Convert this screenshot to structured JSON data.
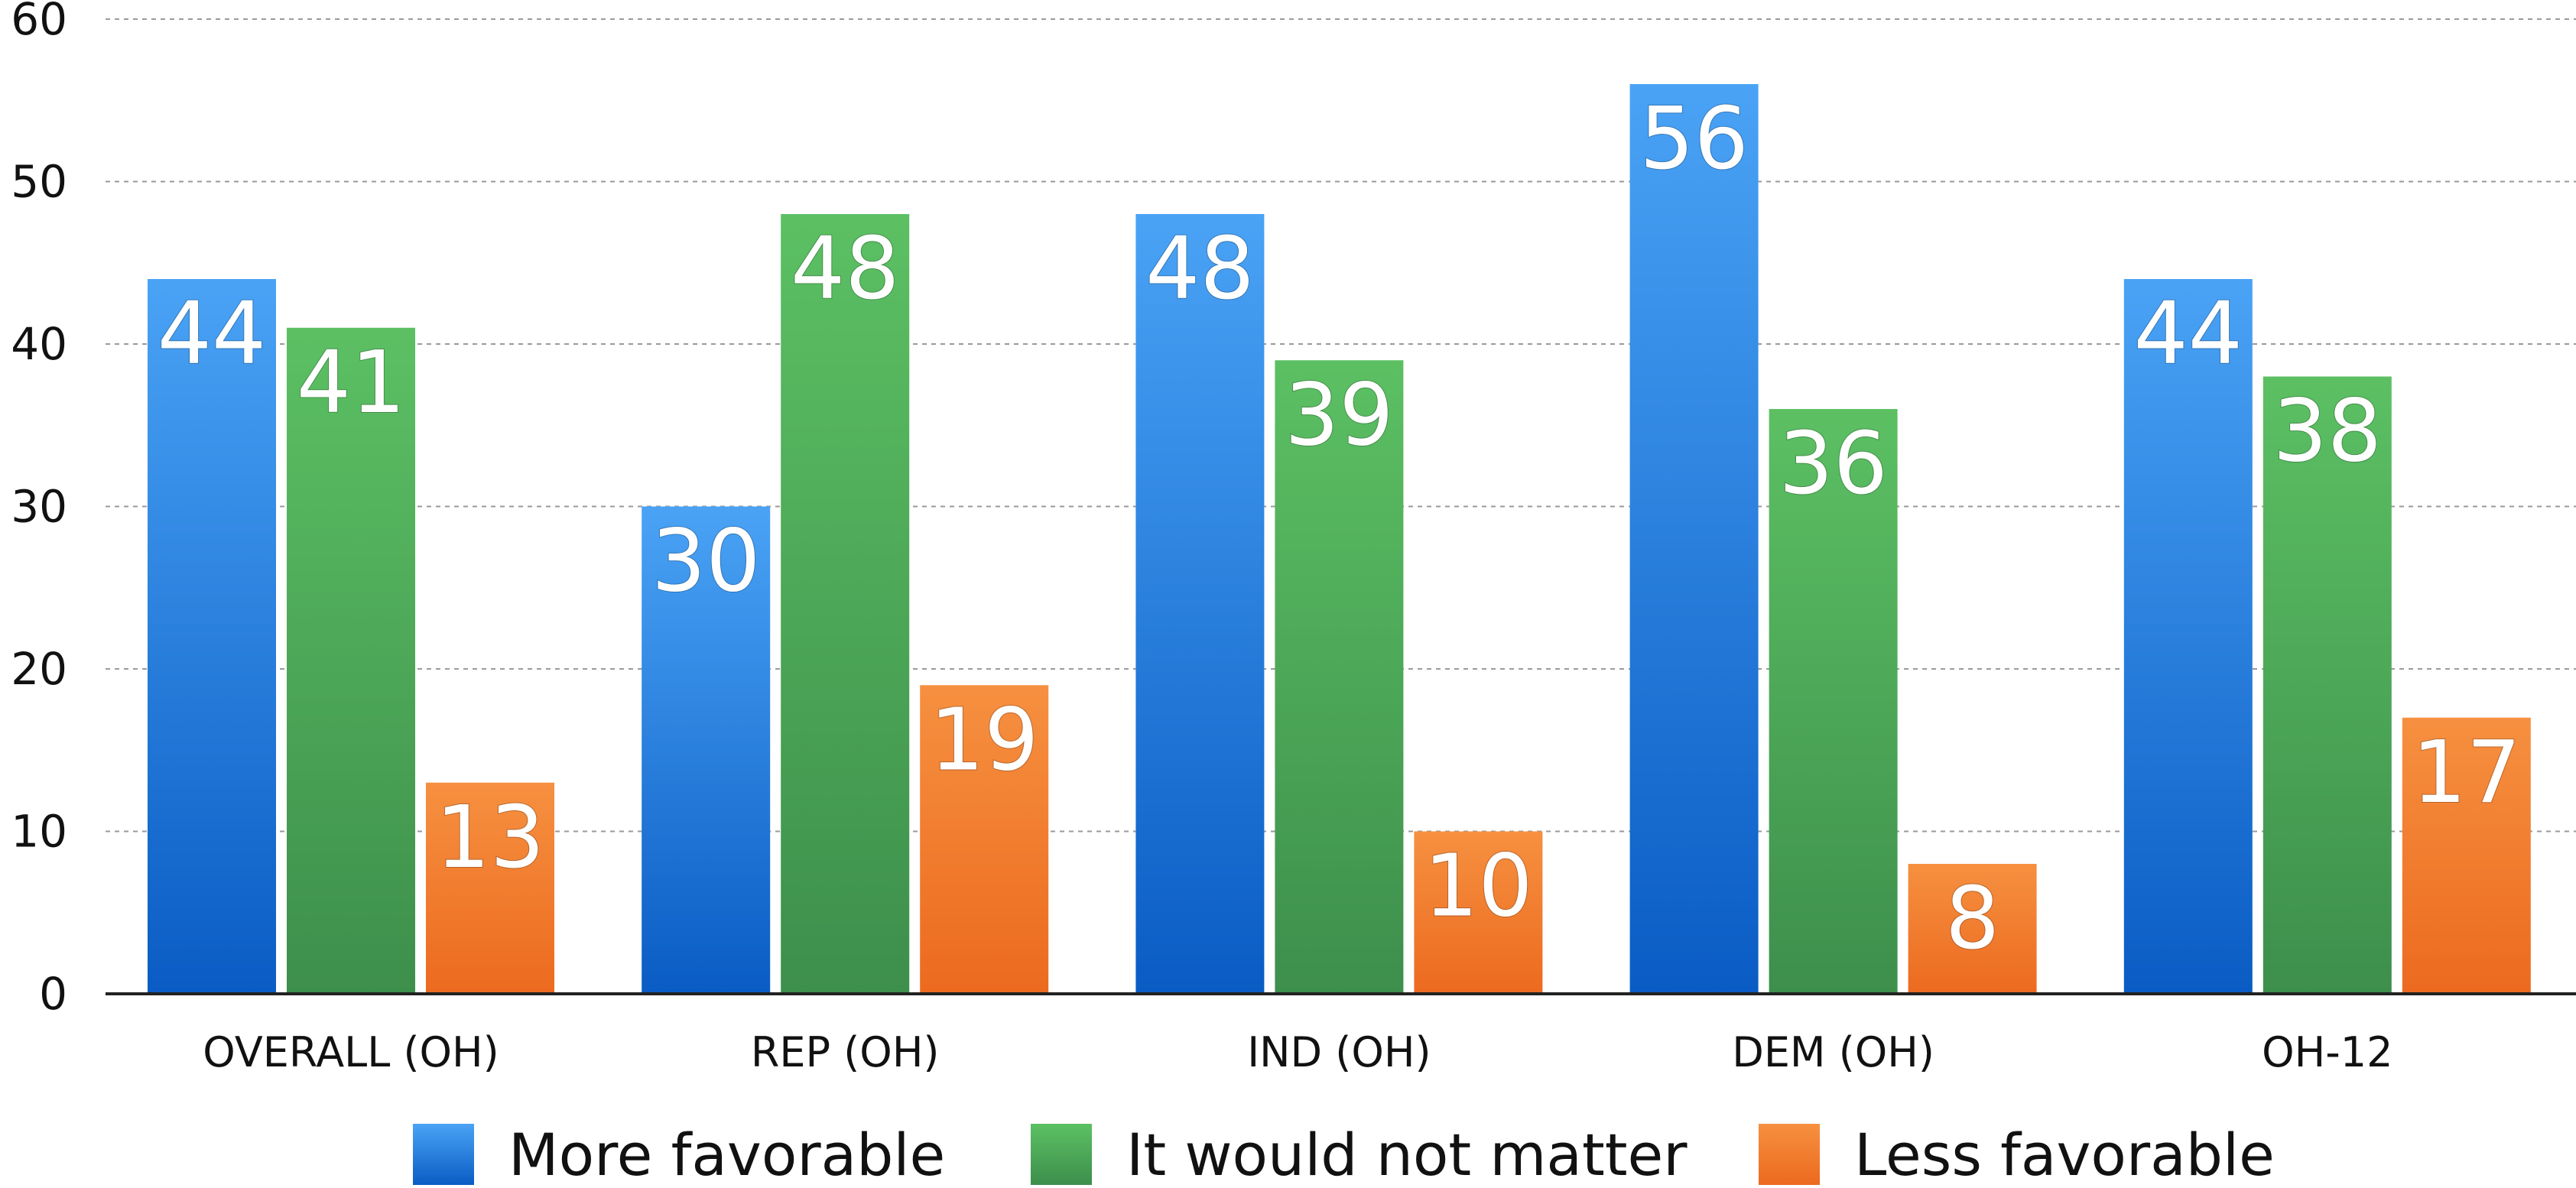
{
  "chart_data": {
    "type": "bar",
    "categories": [
      "OVERALL (OH)",
      "REP (OH)",
      "IND (OH)",
      "DEM (OH)",
      "OH-12"
    ],
    "series": [
      {
        "name": "More favorable",
        "values": [
          44,
          30,
          48,
          56,
          44
        ],
        "color": "#1f7ee0"
      },
      {
        "name": "It would not matter",
        "values": [
          41,
          48,
          39,
          36,
          38
        ],
        "color": "#46a74f"
      },
      {
        "name": "Less favorable",
        "values": [
          13,
          19,
          10,
          8,
          17
        ],
        "color": "#f07a24"
      }
    ],
    "ylim": [
      0,
      60
    ],
    "yticks": [
      0,
      10,
      20,
      30,
      40,
      50,
      60
    ],
    "grid": true,
    "legend_position": "bottom"
  }
}
